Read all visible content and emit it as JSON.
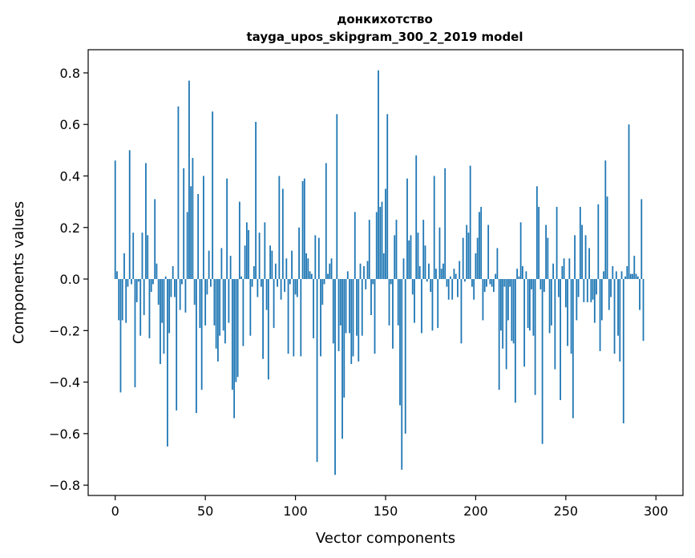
{
  "chart_data": {
    "type": "bar",
    "title_line1": "донкихотство",
    "title_line2": "tayga_upos_skipgram_300_2_2019 model",
    "xlabel": "Vector components",
    "ylabel": "Components values",
    "xlim": [
      -15,
      315
    ],
    "ylim": [
      -0.84,
      0.89
    ],
    "xticks": [
      0,
      50,
      100,
      150,
      200,
      250,
      300
    ],
    "yticks": [
      -0.8,
      -0.6,
      -0.4,
      -0.2,
      0.0,
      0.2,
      0.4,
      0.6,
      0.8
    ],
    "ytick_labels": [
      "−0.8",
      "−0.6",
      "−0.4",
      "−0.2",
      "0.0",
      "0.2",
      "0.4",
      "0.6",
      "0.8"
    ],
    "bar_color": "#1f77b4",
    "values": [
      0.46,
      0.03,
      -0.16,
      -0.44,
      -0.16,
      0.1,
      -0.17,
      -0.03,
      0.5,
      -0.02,
      0.18,
      -0.42,
      -0.09,
      -0.01,
      -0.22,
      0.18,
      -0.14,
      0.45,
      0.17,
      -0.23,
      -0.05,
      -0.02,
      0.31,
      0.06,
      -0.1,
      -0.33,
      -0.17,
      -0.29,
      0.01,
      -0.65,
      -0.21,
      -0.07,
      0.05,
      -0.07,
      -0.51,
      0.67,
      -0.12,
      -0.02,
      0.43,
      -0.13,
      0.26,
      0.77,
      0.36,
      0.47,
      -0.1,
      -0.52,
      0.33,
      -0.19,
      -0.43,
      0.4,
      -0.18,
      -0.06,
      0.11,
      -0.03,
      0.65,
      -0.18,
      -0.27,
      -0.32,
      -0.22,
      0.12,
      -0.2,
      -0.25,
      0.39,
      -0.17,
      0.09,
      -0.43,
      -0.54,
      -0.4,
      -0.38,
      0.3,
      0.01,
      -0.26,
      0.13,
      0.22,
      0.19,
      -0.22,
      -0.03,
      0.05,
      0.61,
      -0.07,
      0.18,
      -0.03,
      -0.31,
      0.22,
      -0.12,
      -0.39,
      0.13,
      0.11,
      -0.19,
      0.06,
      -0.03,
      0.4,
      -0.08,
      0.35,
      -0.05,
      0.08,
      -0.29,
      -0.02,
      0.11,
      -0.3,
      -0.06,
      -0.07,
      0.2,
      -0.3,
      0.38,
      0.39,
      0.1,
      0.08,
      0.03,
      0.02,
      -0.23,
      0.17,
      -0.71,
      0.16,
      -0.3,
      -0.1,
      -0.02,
      0.45,
      0.02,
      0.06,
      0.08,
      -0.25,
      -0.76,
      0.64,
      -0.28,
      -0.18,
      -0.62,
      -0.46,
      -0.21,
      0.03,
      -0.21,
      -0.33,
      -0.3,
      0.26,
      -0.22,
      -0.32,
      0.06,
      -0.22,
      0.05,
      -0.04,
      0.07,
      0.23,
      -0.14,
      -0.02,
      -0.29,
      0.26,
      0.81,
      0.28,
      0.3,
      0.1,
      0.35,
      0.64,
      -0.18,
      -0.02,
      -0.27,
      0.17,
      0.23,
      -0.18,
      -0.49,
      -0.74,
      0.08,
      -0.6,
      0.39,
      0.15,
      0.17,
      -0.06,
      -0.17,
      0.48,
      0.18,
      0.05,
      -0.21,
      0.23,
      0.13,
      -0.01,
      0.06,
      -0.05,
      -0.2,
      0.4,
      0.04,
      -0.19,
      0.2,
      0.04,
      0.06,
      0.43,
      -0.03,
      -0.08,
      0.01,
      -0.08,
      0.04,
      0.02,
      -0.07,
      0.07,
      -0.25,
      0.16,
      -0.01,
      0.21,
      0.18,
      0.44,
      -0.03,
      -0.08,
      0.1,
      0.16,
      0.26,
      0.28,
      -0.16,
      -0.05,
      -0.03,
      0.21,
      -0.02,
      -0.03,
      -0.05,
      0.02,
      0.12,
      -0.43,
      -0.2,
      -0.27,
      -0.03,
      -0.35,
      -0.16,
      -0.03,
      -0.24,
      -0.25,
      -0.48,
      0.04,
      0.01,
      0.22,
      0.05,
      -0.34,
      0.03,
      -0.19,
      -0.2,
      -0.04,
      -0.22,
      -0.45,
      0.36,
      0.28,
      -0.04,
      -0.64,
      -0.05,
      0.21,
      0.16,
      -0.21,
      -0.18,
      0.06,
      -0.35,
      0.28,
      -0.07,
      -0.47,
      0.05,
      0.08,
      -0.11,
      -0.26,
      0.08,
      -0.29,
      -0.54,
      0.17,
      -0.16,
      -0.07,
      0.28,
      0.21,
      -0.09,
      0.17,
      -0.09,
      0.12,
      -0.09,
      -0.08,
      -0.17,
      -0.06,
      0.29,
      -0.28,
      -0.16,
      0.03,
      0.46,
      0.32,
      -0.12,
      -0.07,
      0.05,
      -0.29,
      0.03,
      -0.22,
      -0.32,
      0.03,
      -0.56,
      0.01,
      0.05,
      0.6,
      0.02,
      0.02,
      0.09,
      0.02,
      0.01,
      -0.12,
      0.31,
      -0.24
    ]
  }
}
